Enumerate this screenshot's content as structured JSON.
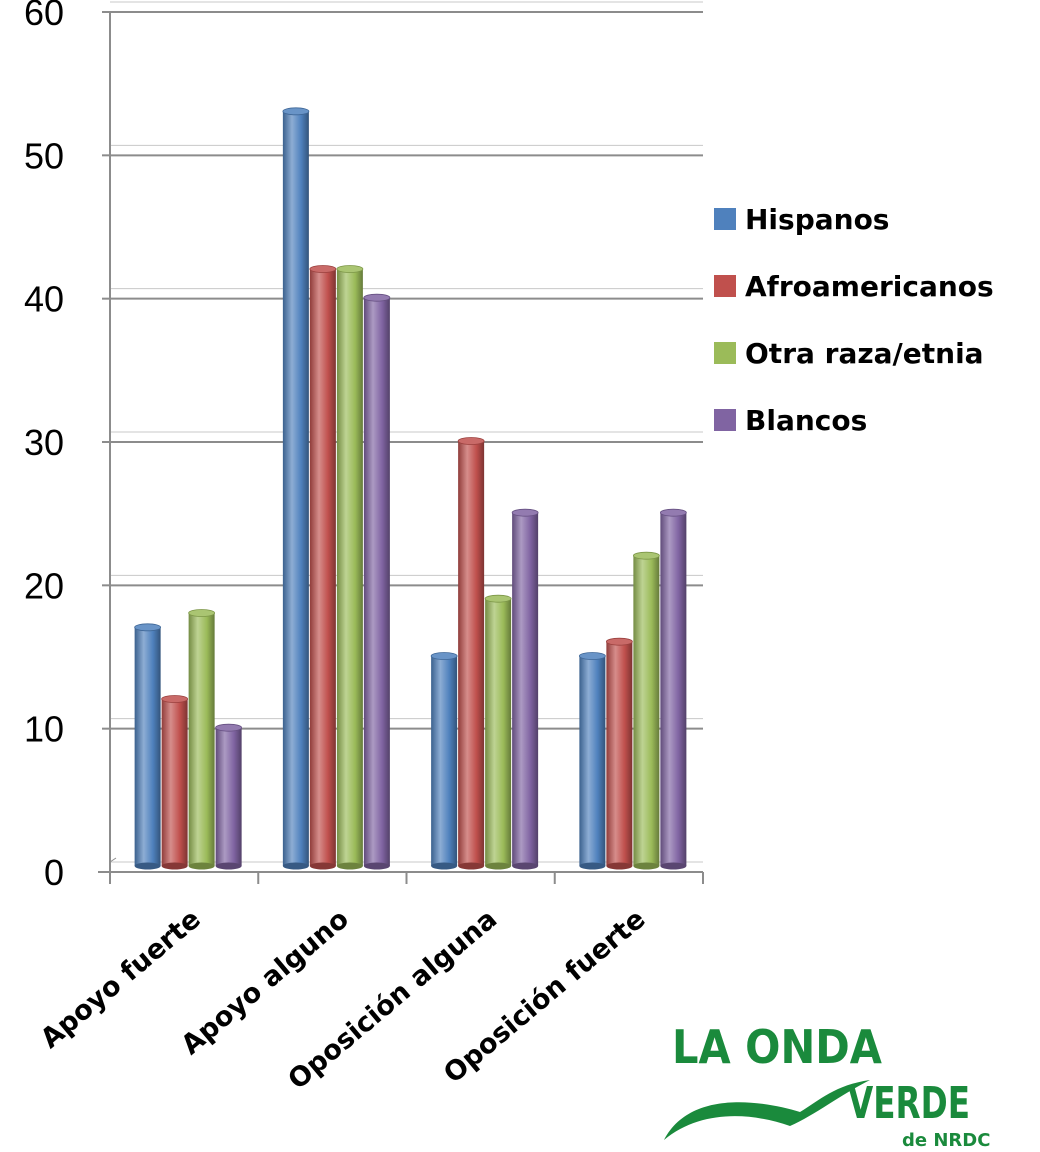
{
  "chart_data": {
    "type": "bar",
    "categories": [
      "Apoyo fuerte",
      "Apoyo alguno",
      "Oposición alguna",
      "Oposición fuerte"
    ],
    "series": [
      {
        "name": "Hispanos",
        "values": [
          17,
          53,
          15,
          15
        ],
        "color": "#4f81bd"
      },
      {
        "name": "Afroamericanos",
        "values": [
          12,
          42,
          30,
          16
        ],
        "color": "#c0504d"
      },
      {
        "name": "Otra raza/etnia",
        "values": [
          18,
          42,
          19,
          22
        ],
        "color": "#9bbb59"
      },
      {
        "name": "Blancos",
        "values": [
          10,
          40,
          25,
          25
        ],
        "color": "#8064a2"
      }
    ],
    "ylim": [
      0,
      60
    ],
    "yticks": [
      0,
      10,
      20,
      30,
      40,
      50,
      60
    ],
    "grid": true,
    "legend_position": "right",
    "xlabel": "",
    "ylabel": ""
  },
  "logo": {
    "line1": "LA ONDA",
    "line2": "VERDE",
    "line3": "de NRDC",
    "color": "#1a8a3c"
  }
}
